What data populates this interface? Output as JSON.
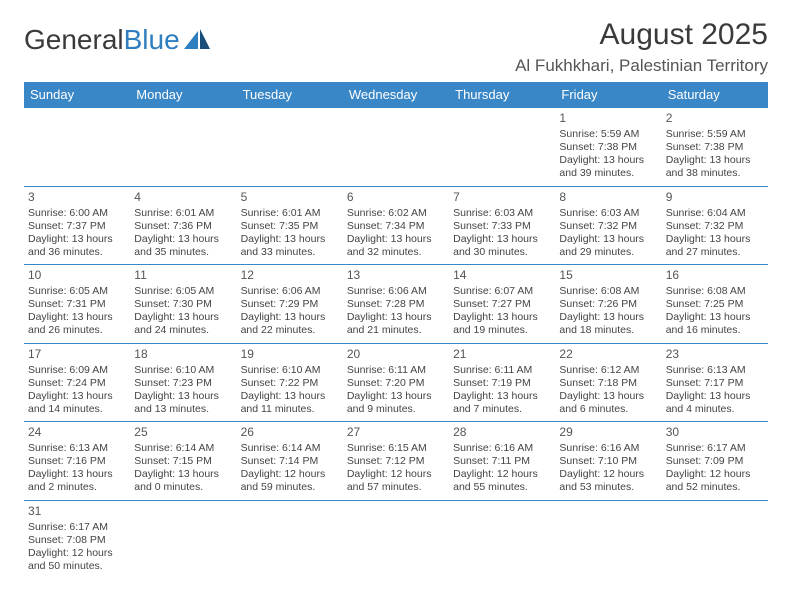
{
  "logo": {
    "text1": "General",
    "text2": "Blue"
  },
  "title": "August 2025",
  "subtitle": "Al Fukhkhari, Palestinian Territory",
  "colors": {
    "header_bg": "#3a87c8",
    "header_text": "#ffffff",
    "cell_border": "#3a87c8",
    "logo_accent": "#2f7ec0",
    "body_text": "#444444",
    "background": "#ffffff"
  },
  "day_headers": [
    "Sunday",
    "Monday",
    "Tuesday",
    "Wednesday",
    "Thursday",
    "Friday",
    "Saturday"
  ],
  "weeks": [
    [
      null,
      null,
      null,
      null,
      null,
      {
        "d": "1",
        "sr": "5:59 AM",
        "ss": "7:38 PM",
        "dl": "13 hours and 39 minutes."
      },
      {
        "d": "2",
        "sr": "5:59 AM",
        "ss": "7:38 PM",
        "dl": "13 hours and 38 minutes."
      }
    ],
    [
      {
        "d": "3",
        "sr": "6:00 AM",
        "ss": "7:37 PM",
        "dl": "13 hours and 36 minutes."
      },
      {
        "d": "4",
        "sr": "6:01 AM",
        "ss": "7:36 PM",
        "dl": "13 hours and 35 minutes."
      },
      {
        "d": "5",
        "sr": "6:01 AM",
        "ss": "7:35 PM",
        "dl": "13 hours and 33 minutes."
      },
      {
        "d": "6",
        "sr": "6:02 AM",
        "ss": "7:34 PM",
        "dl": "13 hours and 32 minutes."
      },
      {
        "d": "7",
        "sr": "6:03 AM",
        "ss": "7:33 PM",
        "dl": "13 hours and 30 minutes."
      },
      {
        "d": "8",
        "sr": "6:03 AM",
        "ss": "7:32 PM",
        "dl": "13 hours and 29 minutes."
      },
      {
        "d": "9",
        "sr": "6:04 AM",
        "ss": "7:32 PM",
        "dl": "13 hours and 27 minutes."
      }
    ],
    [
      {
        "d": "10",
        "sr": "6:05 AM",
        "ss": "7:31 PM",
        "dl": "13 hours and 26 minutes."
      },
      {
        "d": "11",
        "sr": "6:05 AM",
        "ss": "7:30 PM",
        "dl": "13 hours and 24 minutes."
      },
      {
        "d": "12",
        "sr": "6:06 AM",
        "ss": "7:29 PM",
        "dl": "13 hours and 22 minutes."
      },
      {
        "d": "13",
        "sr": "6:06 AM",
        "ss": "7:28 PM",
        "dl": "13 hours and 21 minutes."
      },
      {
        "d": "14",
        "sr": "6:07 AM",
        "ss": "7:27 PM",
        "dl": "13 hours and 19 minutes."
      },
      {
        "d": "15",
        "sr": "6:08 AM",
        "ss": "7:26 PM",
        "dl": "13 hours and 18 minutes."
      },
      {
        "d": "16",
        "sr": "6:08 AM",
        "ss": "7:25 PM",
        "dl": "13 hours and 16 minutes."
      }
    ],
    [
      {
        "d": "17",
        "sr": "6:09 AM",
        "ss": "7:24 PM",
        "dl": "13 hours and 14 minutes."
      },
      {
        "d": "18",
        "sr": "6:10 AM",
        "ss": "7:23 PM",
        "dl": "13 hours and 13 minutes."
      },
      {
        "d": "19",
        "sr": "6:10 AM",
        "ss": "7:22 PM",
        "dl": "13 hours and 11 minutes."
      },
      {
        "d": "20",
        "sr": "6:11 AM",
        "ss": "7:20 PM",
        "dl": "13 hours and 9 minutes."
      },
      {
        "d": "21",
        "sr": "6:11 AM",
        "ss": "7:19 PM",
        "dl": "13 hours and 7 minutes."
      },
      {
        "d": "22",
        "sr": "6:12 AM",
        "ss": "7:18 PM",
        "dl": "13 hours and 6 minutes."
      },
      {
        "d": "23",
        "sr": "6:13 AM",
        "ss": "7:17 PM",
        "dl": "13 hours and 4 minutes."
      }
    ],
    [
      {
        "d": "24",
        "sr": "6:13 AM",
        "ss": "7:16 PM",
        "dl": "13 hours and 2 minutes."
      },
      {
        "d": "25",
        "sr": "6:14 AM",
        "ss": "7:15 PM",
        "dl": "13 hours and 0 minutes."
      },
      {
        "d": "26",
        "sr": "6:14 AM",
        "ss": "7:14 PM",
        "dl": "12 hours and 59 minutes."
      },
      {
        "d": "27",
        "sr": "6:15 AM",
        "ss": "7:12 PM",
        "dl": "12 hours and 57 minutes."
      },
      {
        "d": "28",
        "sr": "6:16 AM",
        "ss": "7:11 PM",
        "dl": "12 hours and 55 minutes."
      },
      {
        "d": "29",
        "sr": "6:16 AM",
        "ss": "7:10 PM",
        "dl": "12 hours and 53 minutes."
      },
      {
        "d": "30",
        "sr": "6:17 AM",
        "ss": "7:09 PM",
        "dl": "12 hours and 52 minutes."
      }
    ],
    [
      {
        "d": "31",
        "sr": "6:17 AM",
        "ss": "7:08 PM",
        "dl": "12 hours and 50 minutes."
      },
      null,
      null,
      null,
      null,
      null,
      null
    ]
  ],
  "labels": {
    "sunrise": "Sunrise:",
    "sunset": "Sunset:",
    "daylight": "Daylight:"
  }
}
